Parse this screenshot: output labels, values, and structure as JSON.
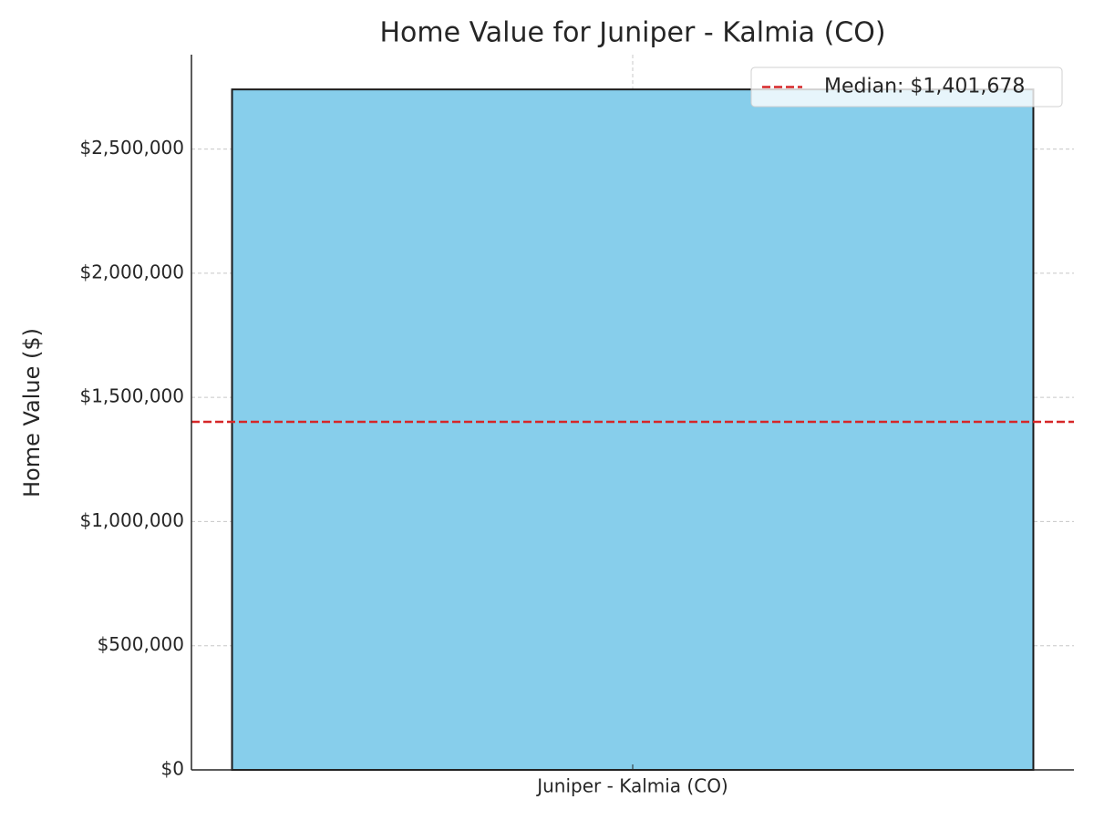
{
  "chart_data": {
    "type": "bar",
    "title": "Home Value for Juniper - Kalmia (CO)",
    "ylabel": "Home Value ($)",
    "categories": [
      "Juniper - Kalmia (CO)"
    ],
    "values": [
      2740000
    ],
    "color": "#87ceeb",
    "edgecolor": "#1a1a1a",
    "median": {
      "value": 1401678,
      "label": "Median: $1,401,678",
      "color": "#d62728"
    },
    "ylim": [
      0,
      2880000
    ],
    "yticks": [
      {
        "value": 0,
        "label": "$0"
      },
      {
        "value": 500000,
        "label": "$500,000"
      },
      {
        "value": 1000000,
        "label": "$1,000,000"
      },
      {
        "value": 1500000,
        "label": "$1,500,000"
      },
      {
        "value": 2000000,
        "label": "$2,000,000"
      },
      {
        "value": 2500000,
        "label": "$2,500,000"
      }
    ],
    "grid": true,
    "legend": "upper right"
  }
}
